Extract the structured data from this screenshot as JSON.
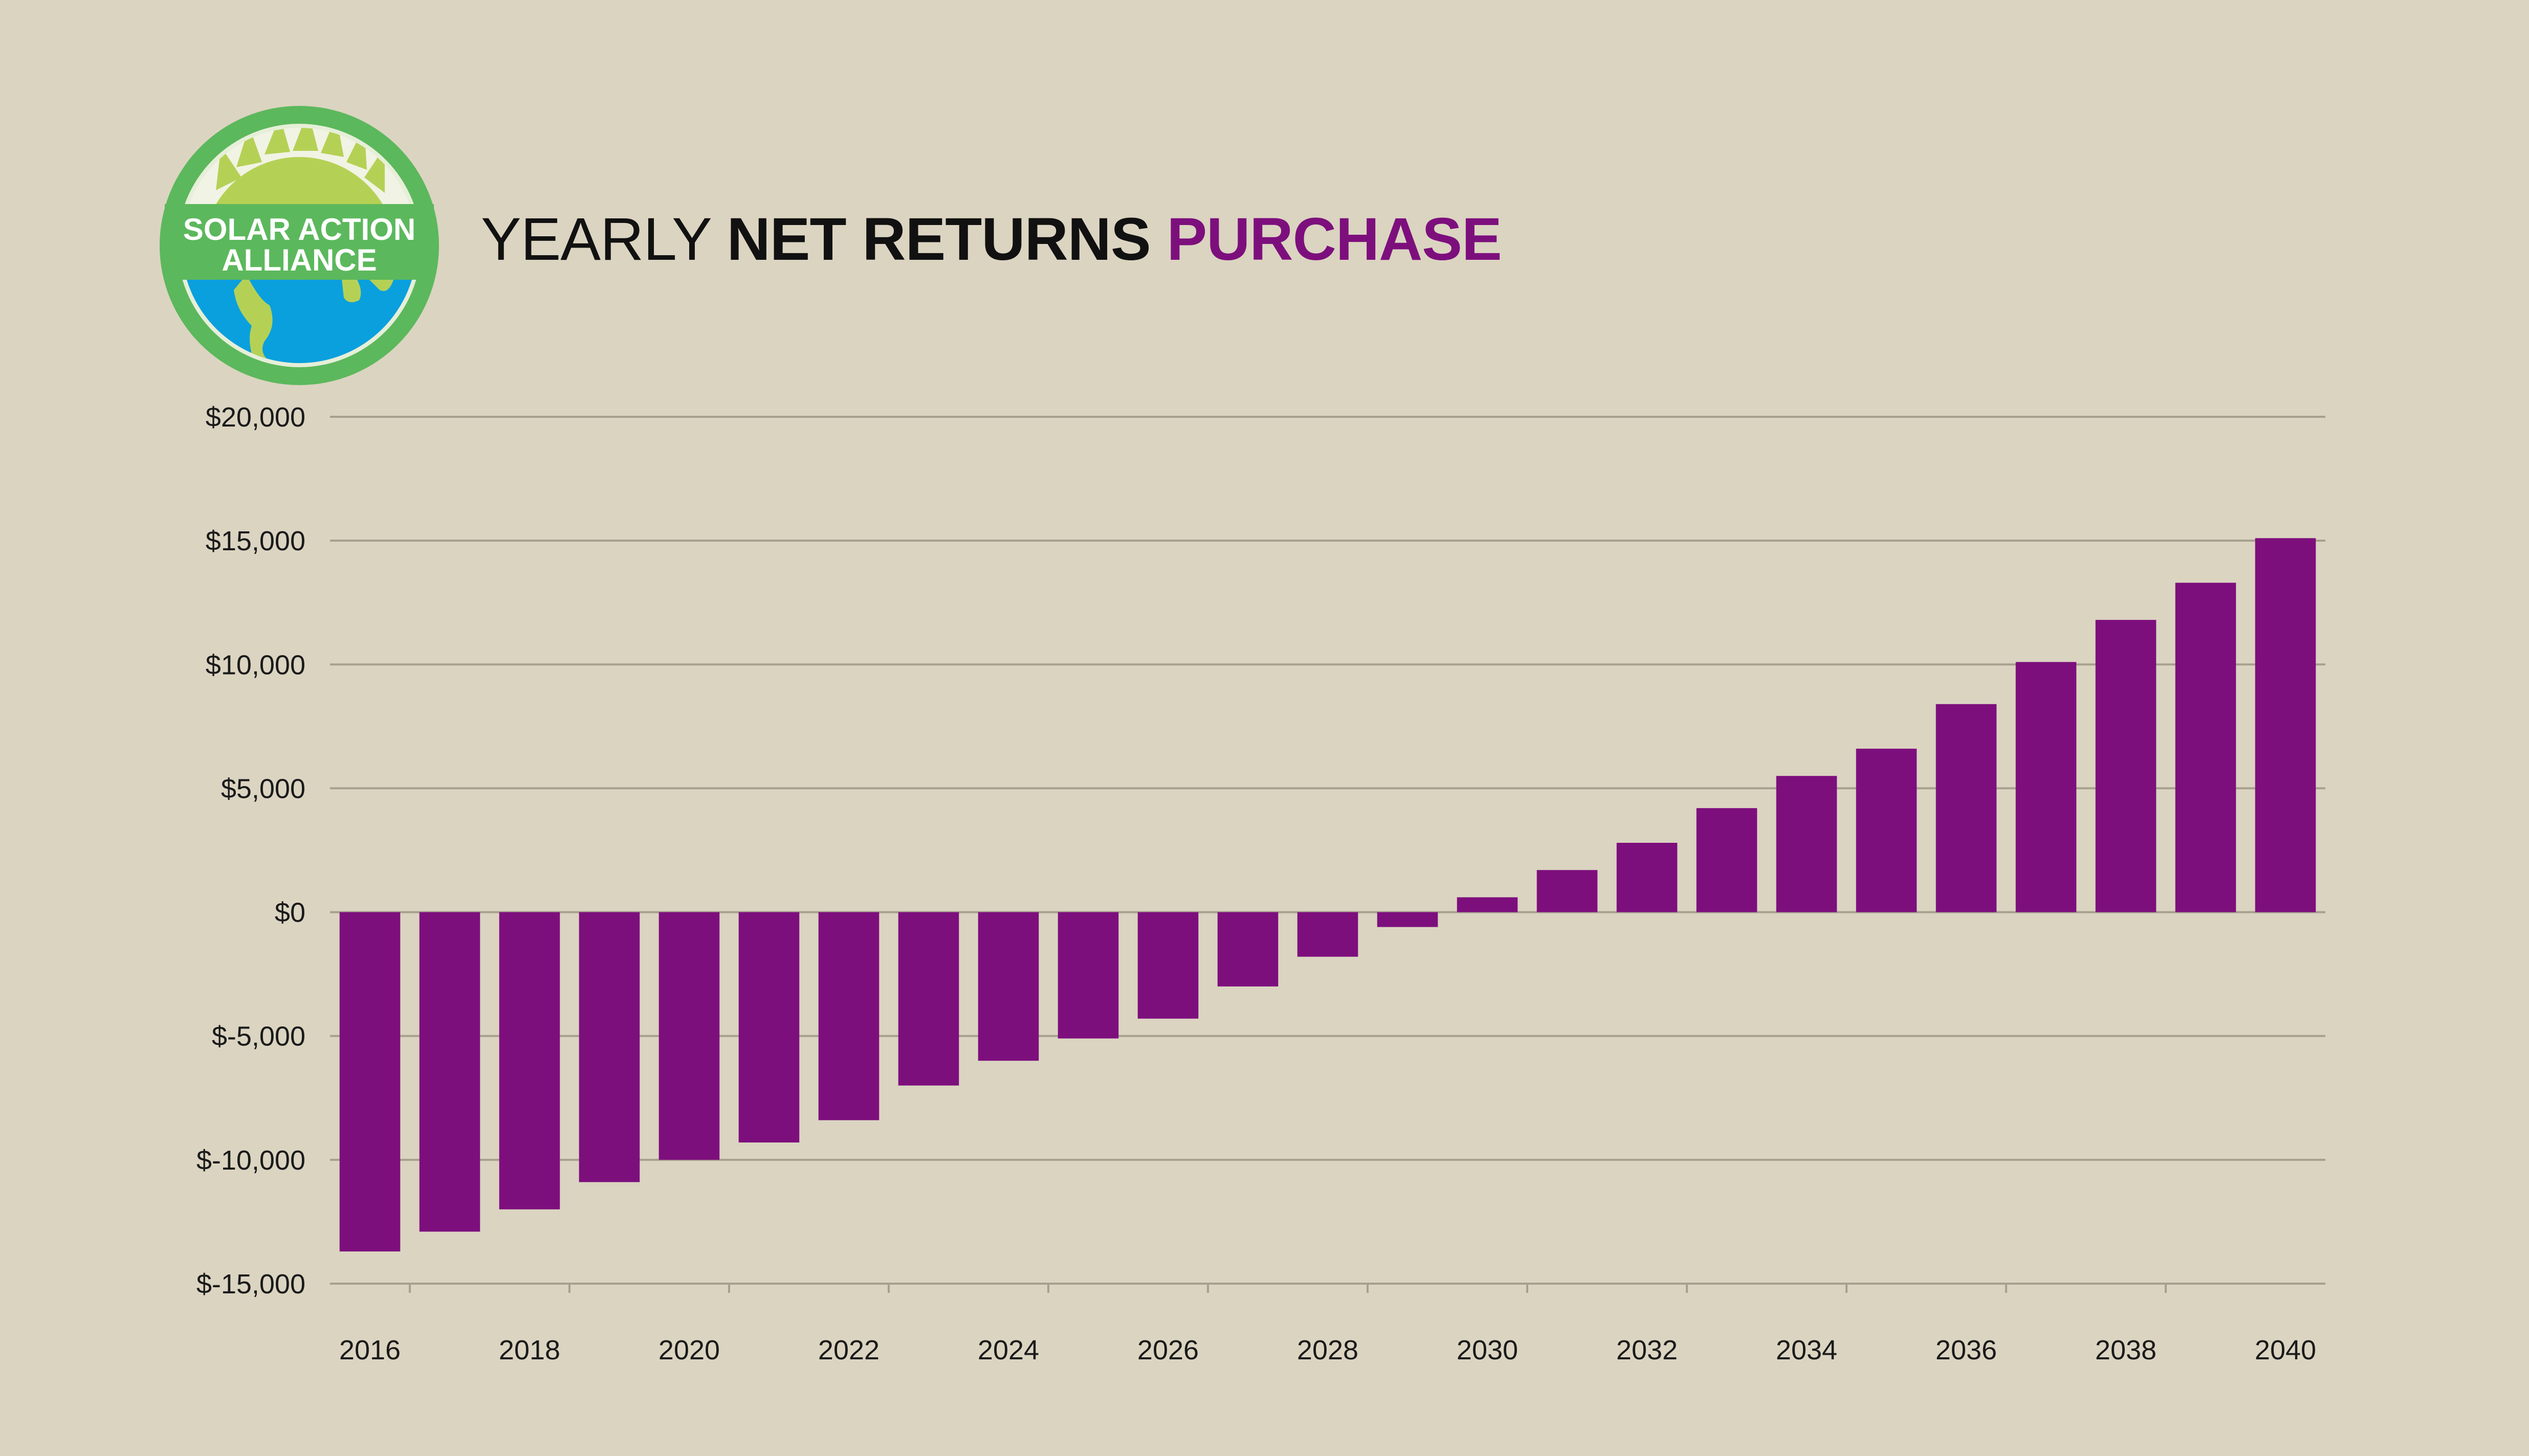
{
  "logo": {
    "line1": "SOLAR ACTION",
    "line2": "ALLIANCE",
    "ring_color": "#5cb85c",
    "sun_color": "#b5d155",
    "ocean_color": "#0aa0de",
    "banner_color": "#5cb85c"
  },
  "title": {
    "part1": "YEARLY",
    "part2": "NET RETURNS",
    "part3": "PURCHASE",
    "accent_color": "#7d0f7d"
  },
  "colors": {
    "background": "#dbd4c1",
    "bar": "#7d0f7d",
    "grid": "#a7a08e"
  },
  "chart_data": {
    "type": "bar",
    "categories": [
      "2016",
      "2017",
      "2018",
      "2019",
      "2020",
      "2021",
      "2022",
      "2023",
      "2024",
      "2025",
      "2026",
      "2027",
      "2028",
      "2029",
      "2030",
      "2031",
      "2032",
      "2033",
      "2034",
      "2035",
      "2036",
      "2037",
      "2038",
      "2039",
      "2040"
    ],
    "x_tick_labels": [
      "2016",
      "2018",
      "2020",
      "2022",
      "2024",
      "2026",
      "2028",
      "2030",
      "2032",
      "2034",
      "2036",
      "2038",
      "2040"
    ],
    "values": [
      -13700,
      -12900,
      -12000,
      -10900,
      -10000,
      -9300,
      -8400,
      -7000,
      -6000,
      -5100,
      -4300,
      -3000,
      -1800,
      -600,
      600,
      1700,
      2800,
      4200,
      5500,
      6600,
      8400,
      10100,
      11800,
      13300,
      15100
    ],
    "y_ticks": [
      20000,
      15000,
      10000,
      5000,
      0,
      -5000,
      -10000,
      -15000
    ],
    "y_tick_labels": [
      "$20,000",
      "$15,000",
      "$10,000",
      "$5,000",
      "$0",
      "$-5,000",
      "$-10,000",
      "$-15,000"
    ],
    "ylim": [
      -15000,
      20000
    ],
    "grid": true,
    "legend": "none",
    "title": "YEARLY NET RETURNS PURCHASE",
    "xlabel": "",
    "ylabel": ""
  }
}
